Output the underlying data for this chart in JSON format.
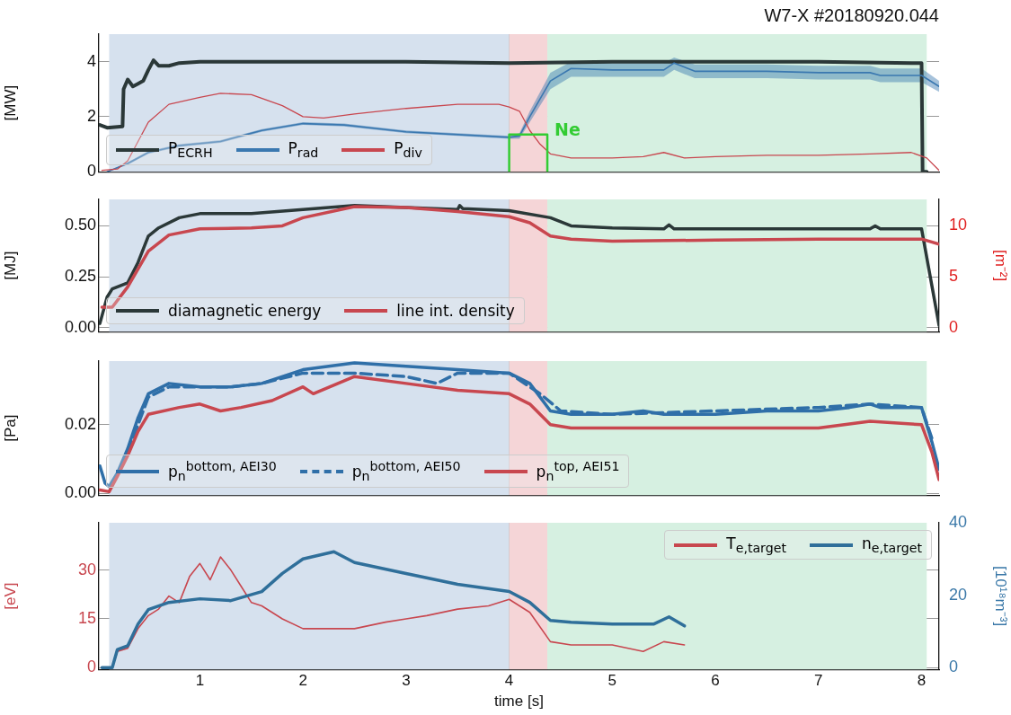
{
  "chart_data": [
    {
      "type": "line",
      "title": "W7-X #20180920.044",
      "ylabel": "[MW]",
      "xlim": [
        0.02,
        8.17
      ],
      "ylim": [
        0,
        5
      ],
      "xticks": [
        1,
        2,
        3,
        4,
        5,
        6,
        7,
        8
      ],
      "yticks": [
        0,
        2,
        4
      ],
      "grid": true,
      "legend": "bottom left",
      "tick_labels": "y",
      "marker": "none",
      "bands": [
        {
          "axis": "x",
          "from": 0.12,
          "to": 4.0,
          "color": "#d6e1ee"
        },
        {
          "axis": "x",
          "from": 4.0,
          "to": 4.37,
          "color": "#f5d5d7"
        },
        {
          "axis": "x",
          "from": 4.37,
          "to": 8.05,
          "color": "#d6f0e1"
        }
      ],
      "annotations": [
        {
          "text": "Ne",
          "x": 4.37,
          "y": 1.35
        }
      ],
      "series": [
        {
          "name": "P$_{ECRH}$",
          "color": "#2b3838",
          "x": [
            0.03,
            0.1,
            0.25,
            0.26,
            0.3,
            0.35,
            0.4,
            0.45,
            0.5,
            0.55,
            0.6,
            0.7,
            0.8,
            1,
            2,
            3,
            4,
            5,
            6,
            7,
            7.9,
            8.0,
            8.01,
            8.05
          ],
          "values": [
            1.7,
            1.6,
            1.65,
            3.0,
            3.35,
            3.1,
            3.2,
            3.3,
            3.7,
            4.05,
            3.85,
            3.85,
            3.95,
            4.0,
            4.0,
            4.0,
            3.95,
            4.0,
            4.0,
            4.0,
            3.95,
            3.95,
            0,
            0
          ]
        },
        {
          "name": "P$_{rad}$",
          "color": "#3a78b0",
          "x": [
            0.1,
            0.3,
            0.5,
            0.8,
            1.2,
            1.6,
            2.0,
            2.4,
            3.0,
            3.5,
            4.0,
            4.1,
            4.2,
            4.4,
            4.6,
            5,
            5.5,
            5.6,
            5.8,
            6.5,
            7,
            7.5,
            7.6,
            8,
            8.17
          ],
          "values": [
            0,
            0.3,
            0.7,
            0.95,
            1.1,
            1.5,
            1.75,
            1.7,
            1.45,
            1.35,
            1.25,
            1.3,
            2.0,
            3.3,
            3.75,
            3.7,
            3.7,
            3.95,
            3.65,
            3.65,
            3.6,
            3.6,
            3.5,
            3.5,
            3.1
          ],
          "lower": [
            0,
            0.25,
            0.65,
            0.9,
            1.05,
            1.45,
            1.7,
            1.65,
            1.4,
            1.3,
            1.2,
            1.2,
            1.8,
            3.0,
            3.45,
            3.45,
            3.45,
            3.7,
            3.4,
            3.4,
            3.35,
            3.35,
            3.25,
            3.25,
            2.9
          ],
          "upper": [
            0,
            0.35,
            0.75,
            1.0,
            1.15,
            1.55,
            1.8,
            1.75,
            1.5,
            1.4,
            1.3,
            1.4,
            2.2,
            3.6,
            4.0,
            3.95,
            3.95,
            4.15,
            3.9,
            3.9,
            3.85,
            3.85,
            3.75,
            3.75,
            3.3
          ]
        },
        {
          "name": "P$_{div}$",
          "color": "#c8474f",
          "x": [
            0.05,
            0.2,
            0.3,
            0.5,
            0.7,
            1.0,
            1.2,
            1.5,
            1.8,
            2.0,
            2.2,
            2.5,
            3.0,
            3.5,
            3.9,
            4.0,
            4.1,
            4.2,
            4.3,
            4.4,
            4.6,
            5,
            5.3,
            5.5,
            5.7,
            6,
            6.5,
            7,
            7.5,
            7.9,
            8.05,
            8.17
          ],
          "values": [
            0.05,
            0.1,
            0.4,
            1.8,
            2.45,
            2.7,
            2.85,
            2.8,
            2.4,
            2.0,
            1.95,
            2.1,
            2.3,
            2.45,
            2.45,
            2.35,
            2.2,
            1.5,
            1.0,
            0.65,
            0.5,
            0.5,
            0.55,
            0.7,
            0.5,
            0.55,
            0.6,
            0.6,
            0.65,
            0.7,
            0.5,
            0.05
          ]
        },
        {
          "color": "#33cc33",
          "x": [
            4.0,
            4.0,
            4.37,
            4.37
          ],
          "values": [
            0,
            1.35,
            1.35,
            0
          ]
        }
      ]
    },
    {
      "type": "line",
      "ylabel": "[MJ]",
      "y2label": "[m⁻²]",
      "xlim": [
        0.02,
        8.17
      ],
      "ylim": [
        -0.02,
        0.63
      ],
      "y2lim": [
        -0.4,
        12.6
      ],
      "xticks": [
        1,
        2,
        3,
        4,
        5,
        6,
        7,
        8
      ],
      "yticks": [
        {
          "value": 0,
          "label": "0.00"
        },
        {
          "value": 0.25,
          "label": "0.25"
        },
        {
          "value": 0.5,
          "label": "0.50"
        }
      ],
      "y2ticks": [
        0,
        5,
        10
      ],
      "grid": true,
      "legend": "bottom left",
      "tick_labels": "y",
      "marker": "none",
      "bands": [
        {
          "axis": "x",
          "from": 0.12,
          "to": 4.0,
          "color": "#d6e1ee"
        },
        {
          "axis": "x",
          "from": 4.0,
          "to": 4.37,
          "color": "#f5d5d7"
        },
        {
          "axis": "x",
          "from": 4.37,
          "to": 8.05,
          "color": "#d6f0e1"
        }
      ],
      "series": [
        {
          "name": "diamagnetic energy",
          "color": "#2b3838",
          "x": [
            0.03,
            0.1,
            0.15,
            0.3,
            0.4,
            0.5,
            0.6,
            0.8,
            1.0,
            1.5,
            2,
            2.5,
            3,
            3.5,
            3.52,
            3.55,
            4,
            4.4,
            4.6,
            5,
            5.5,
            5.55,
            5.6,
            6,
            7,
            7.5,
            7.55,
            7.6,
            8.0,
            8.17
          ],
          "values": [
            0.02,
            0.15,
            0.19,
            0.22,
            0.32,
            0.45,
            0.49,
            0.54,
            0.56,
            0.56,
            0.58,
            0.6,
            0.59,
            0.58,
            0.6,
            0.585,
            0.575,
            0.54,
            0.5,
            0.49,
            0.485,
            0.505,
            0.485,
            0.485,
            0.485,
            0.485,
            0.5,
            0.485,
            0.485,
            0.01
          ]
        },
        {
          "name": "line int. density",
          "color": "#c8474f",
          "axis": "y2",
          "x": [
            0.05,
            0.15,
            0.3,
            0.5,
            0.7,
            1.0,
            1.5,
            1.8,
            2.0,
            2.5,
            3.0,
            3.5,
            4.0,
            4.2,
            4.4,
            4.6,
            5,
            6,
            7,
            7.5,
            8.0,
            8.17
          ],
          "values": [
            2.0,
            2.0,
            4.0,
            7.5,
            9.1,
            9.7,
            9.8,
            10.0,
            10.8,
            11.9,
            11.8,
            11.4,
            10.9,
            10.3,
            9.0,
            8.7,
            8.5,
            8.6,
            8.7,
            8.7,
            8.7,
            8.2
          ]
        }
      ]
    },
    {
      "type": "line",
      "ylabel": "[Pa]",
      "xlim": [
        0.02,
        8.17
      ],
      "ylim": [
        -0.0005,
        0.0385
      ],
      "xticks": [
        1,
        2,
        3,
        4,
        5,
        6,
        7,
        8
      ],
      "yticks": [
        {
          "value": 0,
          "label": "0.00"
        },
        {
          "value": 0.02,
          "label": "0.02"
        }
      ],
      "grid": true,
      "legend": "bottom left",
      "tick_labels": "y",
      "marker": "none",
      "bands": [
        {
          "axis": "x",
          "from": 0.12,
          "to": 4.0,
          "color": "#d6e1ee"
        },
        {
          "axis": "x",
          "from": 4.0,
          "to": 4.37,
          "color": "#f5d5d7"
        },
        {
          "axis": "x",
          "from": 4.37,
          "to": 8.05,
          "color": "#d6f0e1"
        }
      ],
      "series": [
        {
          "name": "p$_{n}$$^{bottom, AEI30}$",
          "color": "#2f6fa8",
          "x": [
            0.03,
            0.08,
            0.12,
            0.2,
            0.3,
            0.4,
            0.5,
            0.7,
            1.0,
            1.3,
            1.6,
            2.0,
            2.5,
            3.0,
            3.5,
            4.0,
            4.2,
            4.4,
            4.6,
            5,
            5.3,
            5.5,
            6,
            6.5,
            7,
            7.3,
            7.5,
            7.6,
            8.0,
            8.1,
            8.17
          ],
          "values": [
            0.008,
            0.003,
            0.002,
            0.006,
            0.013,
            0.022,
            0.029,
            0.032,
            0.031,
            0.031,
            0.032,
            0.036,
            0.038,
            0.037,
            0.036,
            0.035,
            0.032,
            0.024,
            0.023,
            0.023,
            0.024,
            0.023,
            0.023,
            0.024,
            0.024,
            0.025,
            0.026,
            0.025,
            0.025,
            0.015,
            0.007
          ]
        },
        {
          "name": "p$_{n}$$^{bottom, AEI50}$",
          "color": "#2f6fa8",
          "line_style": "dashed",
          "x": [
            0.3,
            0.5,
            0.7,
            1.0,
            1.3,
            1.6,
            2.0,
            2.5,
            3.0,
            3.3,
            3.5,
            4.0,
            4.3,
            4.5,
            5,
            6,
            7,
            7.5,
            8.0,
            8.1
          ],
          "values": [
            0.012,
            0.028,
            0.031,
            0.031,
            0.031,
            0.032,
            0.035,
            0.035,
            0.034,
            0.032,
            0.035,
            0.035,
            0.029,
            0.024,
            0.023,
            0.024,
            0.025,
            0.026,
            0.025,
            0.016
          ]
        },
        {
          "name": "p$_{n}$$^{top, AEI51}$",
          "color": "#c8474f",
          "x": [
            0.03,
            0.12,
            0.2,
            0.3,
            0.4,
            0.5,
            0.8,
            1.0,
            1.2,
            1.4,
            1.7,
            2.0,
            2.1,
            2.5,
            3.0,
            3.5,
            4.0,
            4.2,
            4.4,
            4.6,
            5,
            6,
            7,
            7.5,
            8.0,
            8.1,
            8.17
          ],
          "values": [
            0.001,
            0.0005,
            0.005,
            0.011,
            0.018,
            0.023,
            0.025,
            0.026,
            0.024,
            0.025,
            0.027,
            0.031,
            0.029,
            0.034,
            0.032,
            0.03,
            0.029,
            0.026,
            0.02,
            0.019,
            0.019,
            0.019,
            0.019,
            0.021,
            0.02,
            0.012,
            0.004
          ]
        }
      ]
    },
    {
      "type": "line",
      "xlabel": "time [s]",
      "ylabel": "[eV]",
      "y2label": "[10¹⁸m⁻³]",
      "xlim": [
        0.02,
        8.17
      ],
      "ylim": [
        -0.5,
        44.5
      ],
      "y2lim": [
        -0.5,
        40
      ],
      "xticks": [
        1,
        2,
        3,
        4,
        5,
        6,
        7,
        8
      ],
      "yticks": [
        0,
        15,
        30
      ],
      "y2ticks": [
        0,
        20,
        40
      ],
      "grid": true,
      "legend": "top right",
      "marker": "none",
      "bands": [
        {
          "axis": "x",
          "from": 0.12,
          "to": 4.0,
          "color": "#d6e1ee"
        },
        {
          "axis": "x",
          "from": 4.0,
          "to": 4.37,
          "color": "#f5d5d7"
        },
        {
          "axis": "x",
          "from": 4.37,
          "to": 8.05,
          "color": "#d6f0e1"
        }
      ],
      "series": [
        {
          "name": "T$_{e,target}$",
          "color": "#c8474f",
          "x": [
            0.05,
            0.15,
            0.2,
            0.3,
            0.4,
            0.5,
            0.6,
            0.7,
            0.8,
            0.9,
            1.0,
            1.1,
            1.2,
            1.3,
            1.4,
            1.5,
            1.6,
            1.8,
            2.0,
            2.2,
            2.5,
            2.8,
            3.0,
            3.2,
            3.5,
            3.8,
            4.0,
            4.2,
            4.4,
            4.6,
            5.0,
            5.3,
            5.5,
            5.7
          ],
          "values": [
            0,
            0,
            5,
            6,
            12,
            16,
            18,
            22,
            20,
            28,
            32,
            27,
            34,
            30,
            25,
            20,
            19,
            15,
            12,
            12,
            12,
            14,
            15,
            16,
            18,
            19,
            21,
            17,
            8,
            7,
            7,
            5,
            8,
            7
          ]
        },
        {
          "name": "n$_{e,target}$",
          "color": "#2f6f9a",
          "axis": "y2",
          "x": [
            0.05,
            0.15,
            0.2,
            0.3,
            0.4,
            0.5,
            0.7,
            1.0,
            1.3,
            1.6,
            1.8,
            2.0,
            2.3,
            2.5,
            3.0,
            3.5,
            4.0,
            4.2,
            4.4,
            4.6,
            5.0,
            5.4,
            5.55,
            5.7
          ],
          "values": [
            0,
            0,
            5,
            6,
            12,
            16,
            18,
            19,
            18.5,
            21,
            26,
            30,
            32,
            29,
            26,
            23,
            21,
            18,
            13,
            12.5,
            12,
            12,
            14,
            11.5
          ]
        }
      ]
    }
  ]
}
